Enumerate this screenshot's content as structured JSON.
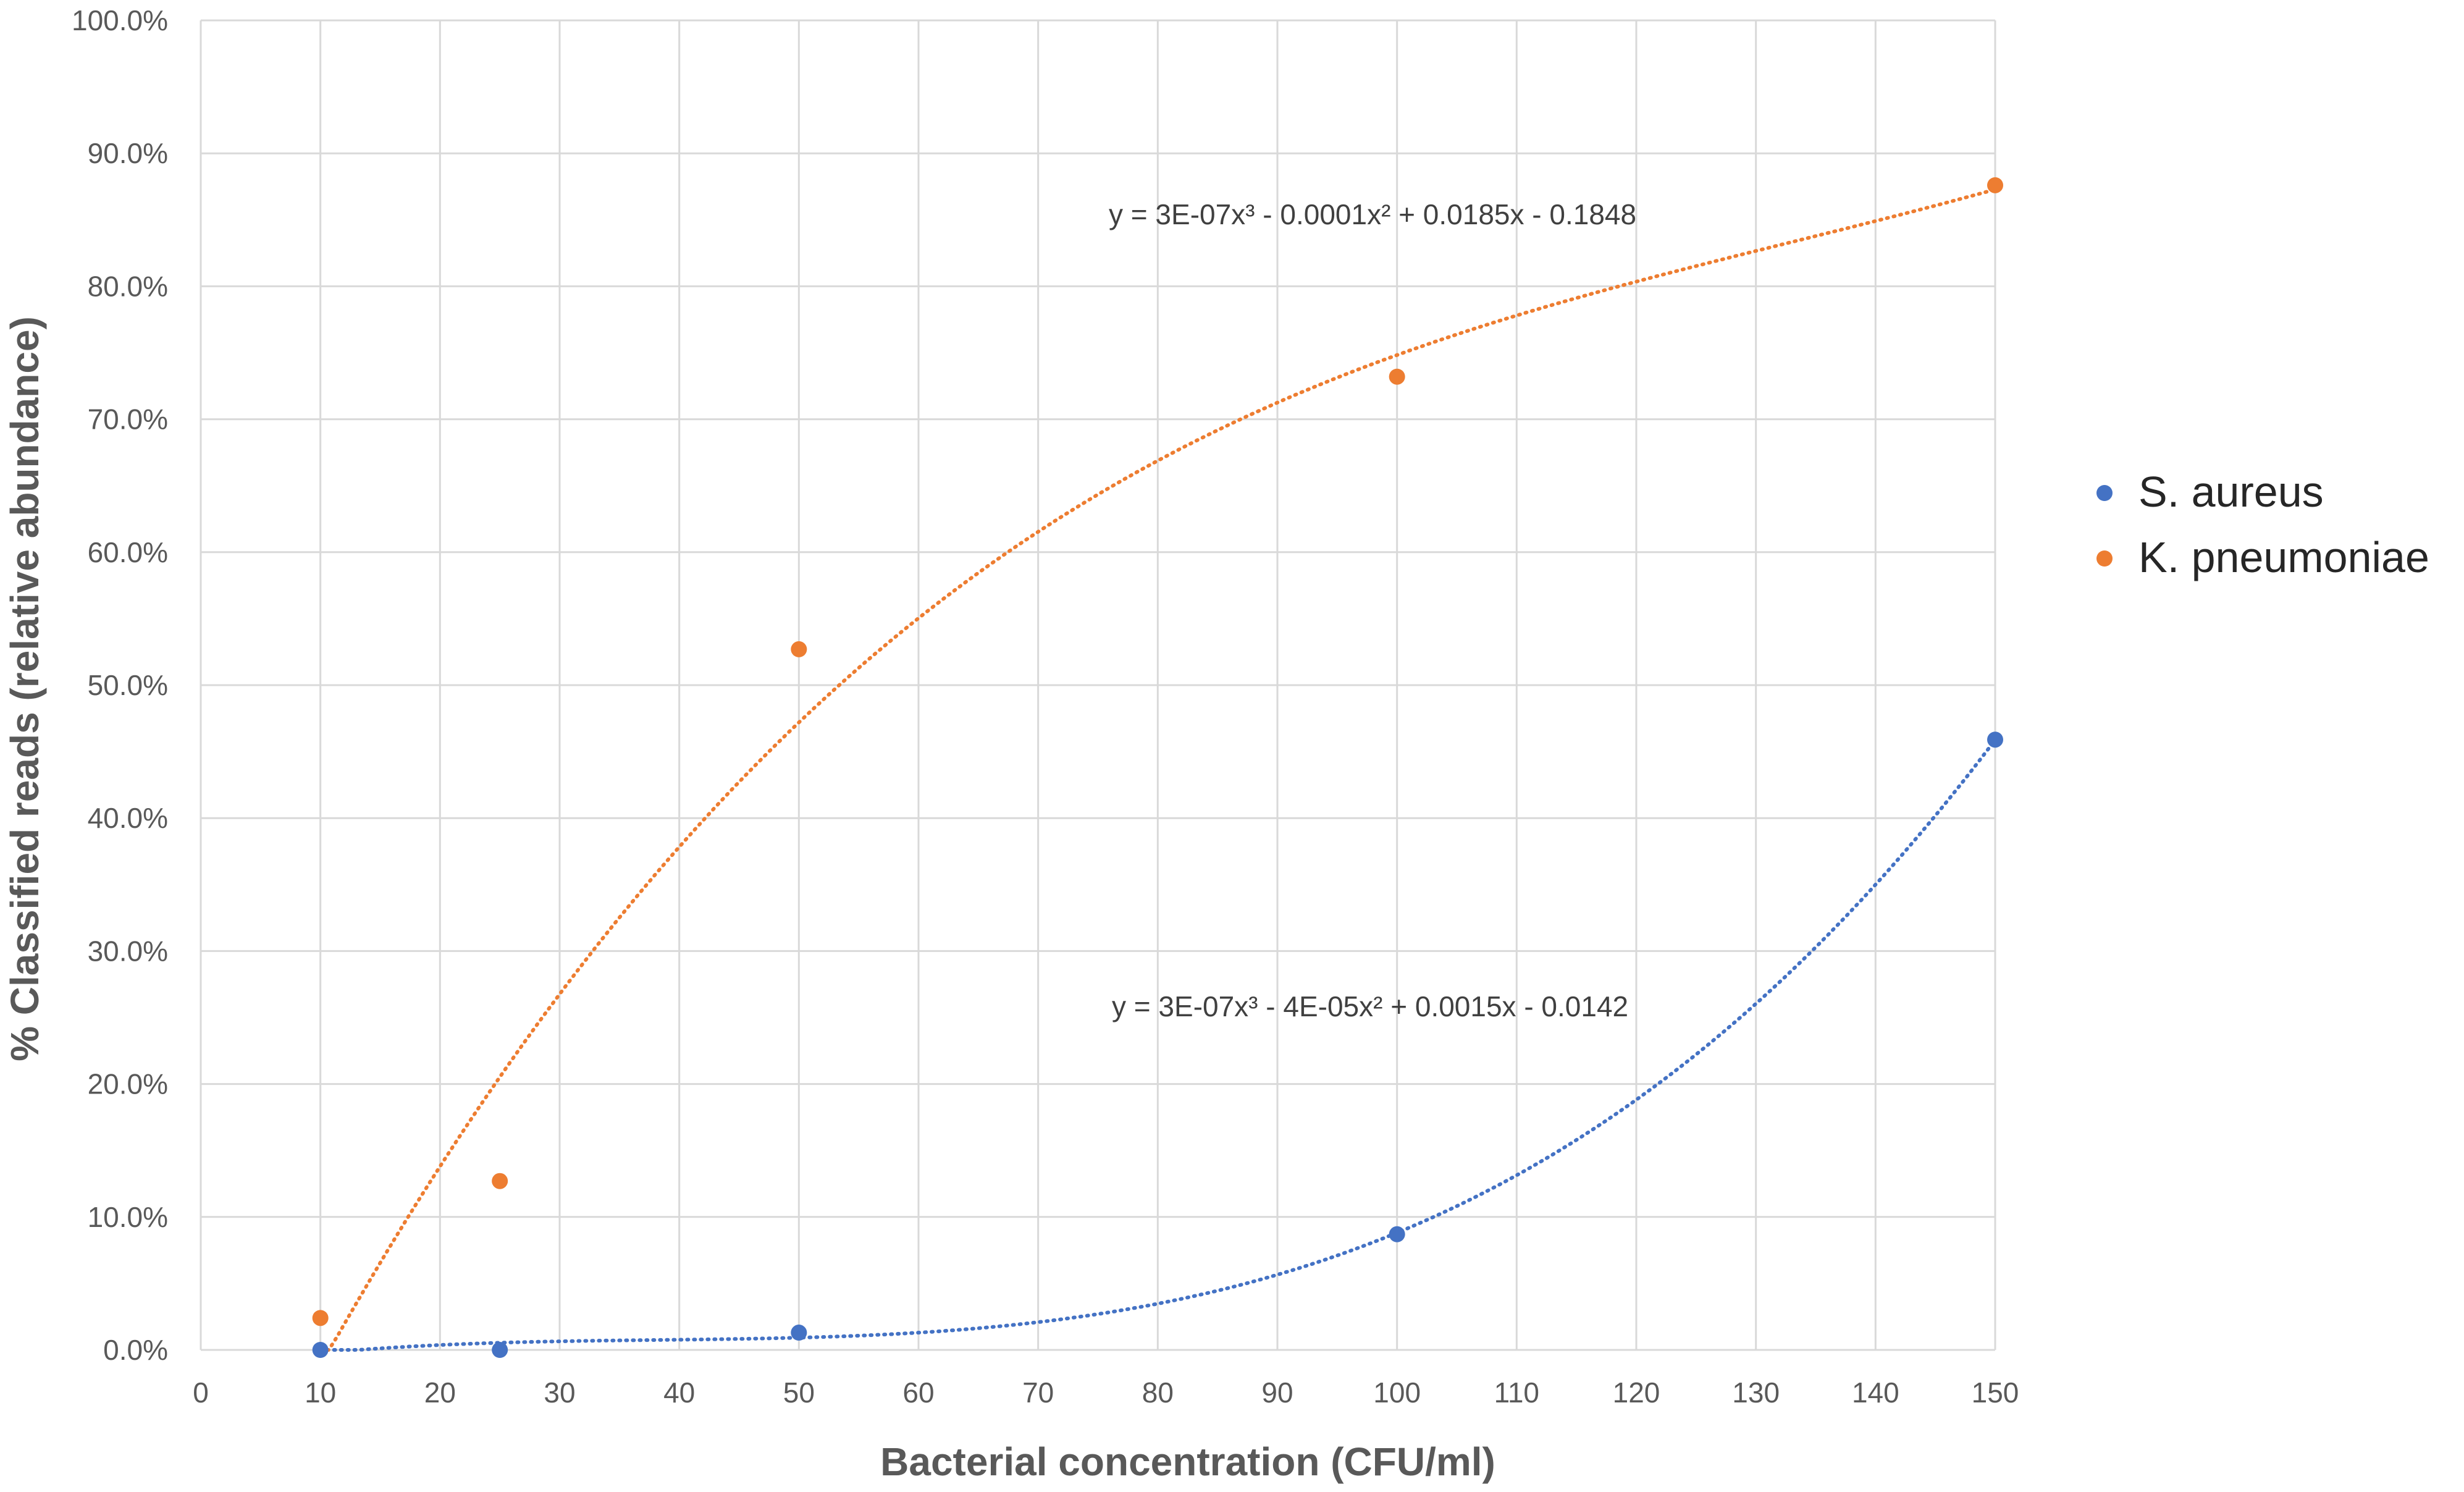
{
  "chart_data": {
    "type": "scatter",
    "title": "",
    "xlabel": "Bacterial concentration (CFU/ml)",
    "ylabel": "% Classified reads (relative abundance)",
    "xlim": [
      0,
      150
    ],
    "ylim": [
      0,
      1.0
    ],
    "x_ticks": [
      "0",
      "10",
      "20",
      "30",
      "40",
      "50",
      "60",
      "70",
      "80",
      "90",
      "100",
      "110",
      "120",
      "130",
      "140",
      "150"
    ],
    "y_ticks": [
      "0.0%",
      "10.0%",
      "20.0%",
      "30.0%",
      "40.0%",
      "50.0%",
      "60.0%",
      "70.0%",
      "80.0%",
      "90.0%",
      "100.0%"
    ],
    "grid": true,
    "legend_position": "right",
    "series": [
      {
        "name": "S. aureus",
        "color": "#4472c4",
        "x": [
          10,
          25,
          50,
          100,
          150
        ],
        "y": [
          0.0,
          0.0,
          0.013,
          0.087,
          0.459
        ],
        "trendline": {
          "type": "polynomial-3",
          "equation": "y = 3E-07x³ - 4E-05x² + 0.0015x - 0.0142"
        }
      },
      {
        "name": "K. pneumoniae",
        "color": "#ed7d31",
        "x": [
          10,
          25,
          50,
          100,
          150
        ],
        "y": [
          0.024,
          0.127,
          0.527,
          0.732,
          0.876
        ],
        "trendline": {
          "type": "polynomial-3",
          "equation": "y = 3E-07x³ - 0.0001x² + 0.0185x - 0.1848"
        }
      }
    ]
  }
}
